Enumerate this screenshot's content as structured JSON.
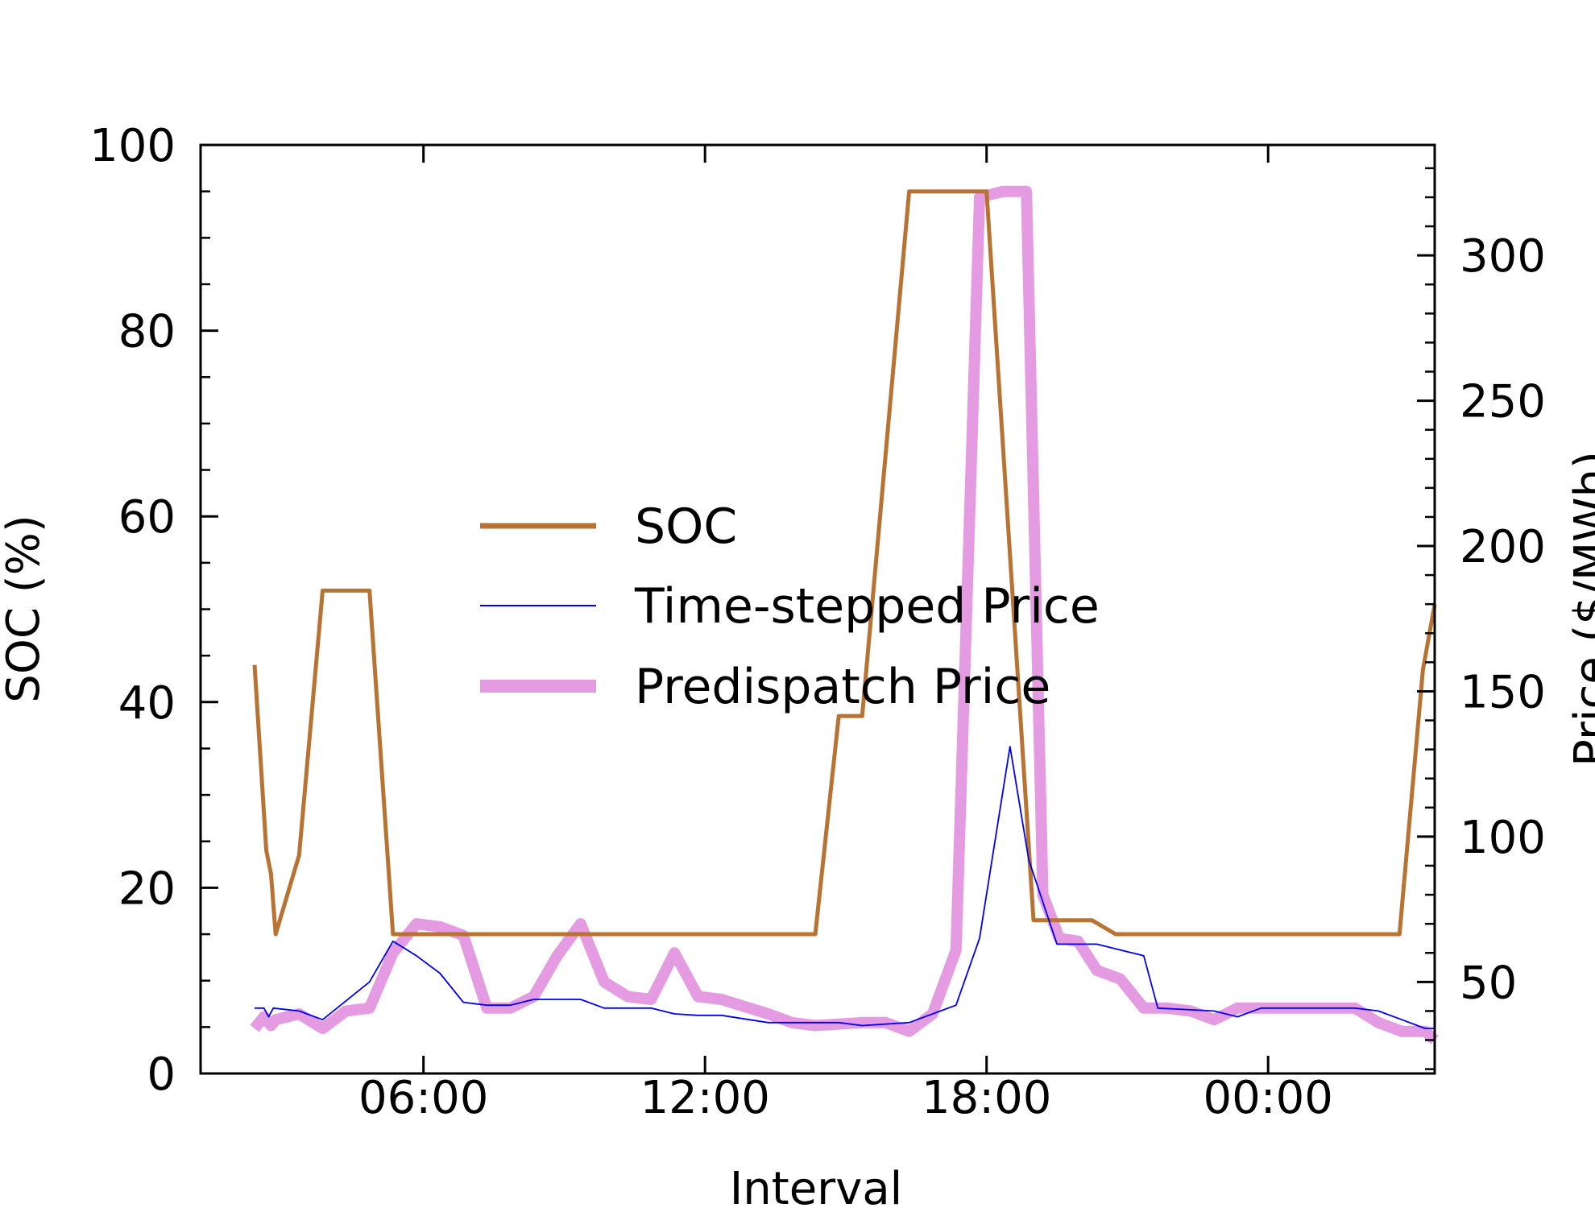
{
  "chart_data": {
    "type": "line",
    "xlabel": "Interval",
    "ylabel": "SOC (%)",
    "y2label": "Price ($/MWh)",
    "x_axis": {
      "unit": "hours from first midnight (24 = next-day 00:00)",
      "range": [
        1.25,
        27.55
      ],
      "ticks": [
        6,
        12,
        18,
        24
      ],
      "tick_labels": [
        "06:00",
        "12:00",
        "18:00",
        "00:00"
      ]
    },
    "y_axis": {
      "range": [
        0,
        100
      ],
      "ticks": [
        0,
        20,
        40,
        60,
        80,
        100
      ],
      "tick_labels": [
        "0",
        "20",
        "40",
        "60",
        "80",
        "100"
      ]
    },
    "y2_axis": {
      "range": [
        18.5,
        338
      ],
      "ticks": [
        50,
        100,
        150,
        200,
        250,
        300
      ],
      "tick_labels": [
        "50",
        "100",
        "150",
        "200",
        "250",
        "300"
      ]
    },
    "legend": {
      "position": "center-left",
      "entries": [
        "SOC",
        "Time-stepped Price",
        "Predispatch Price"
      ]
    },
    "grid": false,
    "series": [
      {
        "name": "SOC",
        "axis": "left",
        "color": "#b87333",
        "width": 5,
        "opacity": 1,
        "points": [
          [
            2.4,
            44
          ],
          [
            2.65,
            24
          ],
          [
            2.75,
            21.5
          ],
          [
            2.85,
            15
          ],
          [
            3.35,
            23.5
          ],
          [
            3.85,
            52
          ],
          [
            4.85,
            52
          ],
          [
            5.35,
            15
          ],
          [
            14.35,
            15
          ],
          [
            14.85,
            38.5
          ],
          [
            15.35,
            38.5
          ],
          [
            16.35,
            95
          ],
          [
            18.0,
            95
          ],
          [
            19.0,
            16.5
          ],
          [
            20.25,
            16.5
          ],
          [
            20.75,
            15
          ],
          [
            26.8,
            15
          ],
          [
            27.3,
            43.5
          ],
          [
            27.55,
            50.5
          ]
        ]
      },
      {
        "name": "Time-stepped Price",
        "axis": "right",
        "color": "#0000ee",
        "width": 1.8,
        "opacity": 1,
        "points": [
          [
            2.4,
            41
          ],
          [
            2.6,
            41
          ],
          [
            2.7,
            38
          ],
          [
            2.8,
            41
          ],
          [
            3.35,
            40
          ],
          [
            3.85,
            37
          ],
          [
            4.85,
            50
          ],
          [
            5.35,
            64
          ],
          [
            5.85,
            59
          ],
          [
            6.35,
            53
          ],
          [
            6.85,
            43
          ],
          [
            7.35,
            42
          ],
          [
            7.85,
            42
          ],
          [
            8.35,
            44
          ],
          [
            9.35,
            44
          ],
          [
            9.85,
            41
          ],
          [
            10.85,
            41
          ],
          [
            11.35,
            39
          ],
          [
            11.85,
            38.5
          ],
          [
            12.35,
            38.5
          ],
          [
            13.35,
            36
          ],
          [
            14.35,
            36
          ],
          [
            14.85,
            36
          ],
          [
            15.35,
            35
          ],
          [
            16.35,
            36
          ],
          [
            16.85,
            39
          ],
          [
            17.35,
            42
          ],
          [
            17.85,
            65
          ],
          [
            18.5,
            131
          ],
          [
            18.9,
            92
          ],
          [
            19.5,
            63
          ],
          [
            20.35,
            63
          ],
          [
            20.85,
            61
          ],
          [
            21.35,
            59
          ],
          [
            21.65,
            41
          ],
          [
            22.85,
            40
          ],
          [
            23.35,
            38
          ],
          [
            23.85,
            41
          ],
          [
            24.85,
            41
          ],
          [
            25.85,
            41
          ],
          [
            26.35,
            40
          ],
          [
            26.85,
            37
          ],
          [
            27.35,
            34
          ],
          [
            27.55,
            34
          ]
        ]
      },
      {
        "name": "Predispatch Price",
        "axis": "right",
        "color": "#da70d6",
        "width": 14,
        "opacity": 0.7,
        "points": [
          [
            2.4,
            34
          ],
          [
            2.6,
            38
          ],
          [
            2.75,
            35
          ],
          [
            2.85,
            37
          ],
          [
            3.35,
            39
          ],
          [
            3.85,
            34
          ],
          [
            4.35,
            40
          ],
          [
            4.85,
            41
          ],
          [
            5.35,
            60
          ],
          [
            5.85,
            70
          ],
          [
            6.35,
            69
          ],
          [
            6.85,
            66
          ],
          [
            7.35,
            41
          ],
          [
            7.85,
            41
          ],
          [
            8.35,
            45
          ],
          [
            8.85,
            59
          ],
          [
            9.35,
            70
          ],
          [
            9.85,
            50
          ],
          [
            10.35,
            45
          ],
          [
            10.85,
            44
          ],
          [
            11.35,
            60
          ],
          [
            11.85,
            45
          ],
          [
            12.35,
            44
          ],
          [
            13.35,
            39
          ],
          [
            13.85,
            36
          ],
          [
            14.35,
            35
          ],
          [
            15.35,
            36
          ],
          [
            15.85,
            36
          ],
          [
            16.35,
            33
          ],
          [
            16.85,
            39
          ],
          [
            17.35,
            61
          ],
          [
            17.85,
            320
          ],
          [
            18.35,
            322
          ],
          [
            18.85,
            322
          ],
          [
            19.2,
            80
          ],
          [
            19.55,
            65
          ],
          [
            19.95,
            64
          ],
          [
            20.35,
            54
          ],
          [
            20.85,
            51
          ],
          [
            21.35,
            41
          ],
          [
            21.85,
            41
          ],
          [
            22.35,
            40
          ],
          [
            22.85,
            37
          ],
          [
            23.35,
            41
          ],
          [
            23.85,
            41
          ],
          [
            24.85,
            41
          ],
          [
            25.85,
            41
          ],
          [
            26.35,
            36
          ],
          [
            26.85,
            33
          ],
          [
            27.35,
            33
          ],
          [
            27.55,
            30
          ]
        ]
      }
    ]
  }
}
